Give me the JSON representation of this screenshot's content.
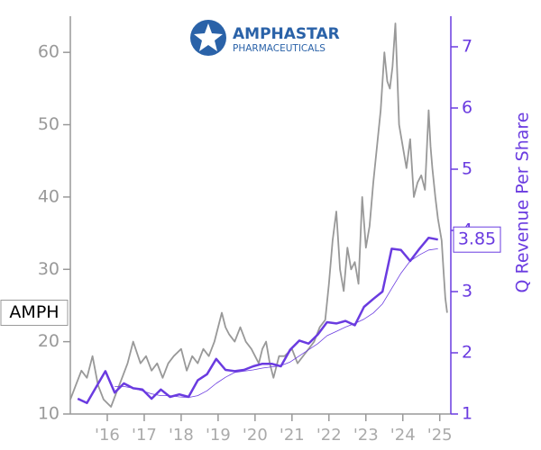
{
  "chart_data": {
    "type": "line",
    "logo": {
      "name": "AMPHASTAR",
      "tagline": "PHARMACEUTICALS"
    },
    "y2_label": "Q Revenue Per Share",
    "xlim": [
      2015.0,
      2025.3
    ],
    "xticks": [
      {
        "value": 2016,
        "label": "'16"
      },
      {
        "value": 2017,
        "label": "'17"
      },
      {
        "value": 2018,
        "label": "'18"
      },
      {
        "value": 2019,
        "label": "'19"
      },
      {
        "value": 2020,
        "label": "'20"
      },
      {
        "value": 2021,
        "label": "'21"
      },
      {
        "value": 2022,
        "label": "'22"
      },
      {
        "value": 2023,
        "label": "'23"
      },
      {
        "value": 2024,
        "label": "'24"
      },
      {
        "value": 2025,
        "label": "'25"
      }
    ],
    "ylim": [
      10,
      65
    ],
    "yticks": [
      10,
      20,
      30,
      40,
      50,
      60
    ],
    "y2lim": [
      1,
      7.5
    ],
    "y2ticks": [
      1,
      2,
      3,
      4,
      5,
      6,
      7
    ],
    "series": [
      {
        "name": "AMPH",
        "color": "#999999",
        "x": [
          2015.0,
          2015.15,
          2015.3,
          2015.45,
          2015.6,
          2015.75,
          2015.9,
          2016.1,
          2016.25,
          2016.4,
          2016.55,
          2016.7,
          2016.9,
          2017.05,
          2017.2,
          2017.35,
          2017.5,
          2017.65,
          2017.8,
          2018.0,
          2018.15,
          2018.3,
          2018.45,
          2018.6,
          2018.75,
          2018.9,
          2019.1,
          2019.2,
          2019.3,
          2019.45,
          2019.6,
          2019.75,
          2019.9,
          2020.1,
          2020.2,
          2020.3,
          2020.4,
          2020.5,
          2020.65,
          2020.8,
          2021.0,
          2021.15,
          2021.3,
          2021.45,
          2021.6,
          2021.75,
          2021.9,
          2022.0,
          2022.1,
          2022.2,
          2022.3,
          2022.4,
          2022.5,
          2022.6,
          2022.7,
          2022.8,
          2022.9,
          2023.0,
          2023.1,
          2023.2,
          2023.3,
          2023.4,
          2023.5,
          2023.58,
          2023.65,
          2023.72,
          2023.8,
          2023.85,
          2023.9,
          2024.0,
          2024.1,
          2024.2,
          2024.3,
          2024.4,
          2024.5,
          2024.6,
          2024.7,
          2024.75,
          2024.8,
          2024.88,
          2024.95,
          2025.05,
          2025.1,
          2025.15,
          2025.2
        ],
        "values": [
          12,
          14,
          16,
          15,
          18,
          14,
          12,
          11,
          13,
          15,
          17,
          20,
          17,
          18,
          16,
          17,
          15,
          17,
          18,
          19,
          16,
          18,
          17,
          19,
          18,
          20,
          24,
          22,
          21,
          20,
          22,
          20,
          19,
          17,
          19,
          20,
          17,
          15,
          18,
          18,
          19,
          17,
          18,
          19,
          20,
          22,
          23,
          28,
          34,
          38,
          30,
          27,
          33,
          30,
          31,
          28,
          40,
          33,
          36,
          42,
          47,
          52,
          60,
          56,
          55,
          58,
          64,
          57,
          50,
          47,
          44,
          48,
          40,
          42,
          43,
          41,
          52,
          47,
          44,
          40,
          37,
          34,
          30,
          26,
          24
        ]
      },
      {
        "color": "#6a3be0",
        "axis": "y2",
        "x": [
          2015.2,
          2015.45,
          2015.95,
          2016.2,
          2016.45,
          2016.7,
          2016.95,
          2017.2,
          2017.45,
          2017.7,
          2017.95,
          2018.2,
          2018.45,
          2018.7,
          2018.95,
          2019.2,
          2019.45,
          2019.7,
          2019.95,
          2020.2,
          2020.45,
          2020.7,
          2020.95,
          2021.2,
          2021.45,
          2021.7,
          2021.95,
          2022.2,
          2022.45,
          2022.7,
          2022.95,
          2023.2,
          2023.45,
          2023.7,
          2023.95,
          2024.2,
          2024.45,
          2024.7,
          2024.95
        ],
        "values": [
          1.25,
          1.18,
          1.7,
          1.35,
          1.5,
          1.42,
          1.4,
          1.25,
          1.4,
          1.28,
          1.32,
          1.28,
          1.55,
          1.65,
          1.9,
          1.72,
          1.7,
          1.72,
          1.78,
          1.82,
          1.82,
          1.78,
          2.05,
          2.2,
          2.15,
          2.3,
          2.5,
          2.48,
          2.52,
          2.45,
          2.75,
          2.88,
          3.0,
          3.7,
          3.68,
          3.5,
          3.7,
          3.88,
          3.85
        ]
      },
      {
        "color": "#6a3be0",
        "axis": "y2",
        "width": 0.8,
        "x": [
          2016.2,
          2016.45,
          2016.7,
          2016.95,
          2017.2,
          2017.45,
          2017.7,
          2017.95,
          2018.2,
          2018.45,
          2018.7,
          2018.95,
          2019.2,
          2019.45,
          2019.7,
          2019.95,
          2020.2,
          2020.45,
          2020.7,
          2020.95,
          2021.2,
          2021.45,
          2021.7,
          2021.95,
          2022.2,
          2022.45,
          2022.7,
          2022.95,
          2023.2,
          2023.45,
          2023.7,
          2023.95,
          2024.2,
          2024.45,
          2024.7,
          2024.95
        ],
        "values": [
          1.45,
          1.45,
          1.42,
          1.38,
          1.33,
          1.3,
          1.3,
          1.28,
          1.27,
          1.3,
          1.38,
          1.5,
          1.6,
          1.68,
          1.7,
          1.72,
          1.75,
          1.77,
          1.79,
          1.85,
          1.95,
          2.05,
          2.15,
          2.28,
          2.35,
          2.42,
          2.48,
          2.55,
          2.65,
          2.8,
          3.05,
          3.3,
          3.5,
          3.6,
          3.68,
          3.7
        ]
      }
    ]
  }
}
